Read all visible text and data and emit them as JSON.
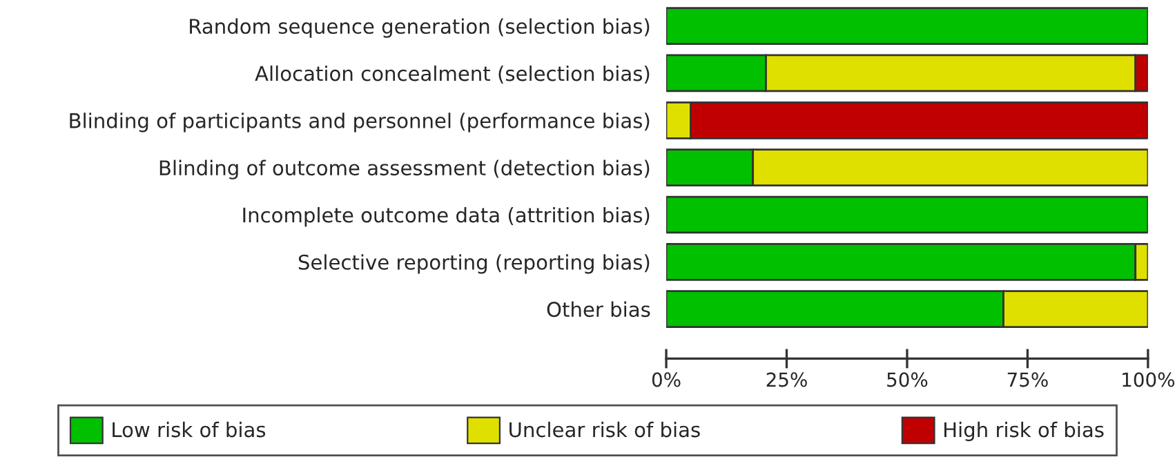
{
  "chart_data": {
    "type": "bar",
    "orientation": "horizontal",
    "stacked": true,
    "categories": [
      "Random sequence generation (selection bias)",
      "Allocation concealment (selection bias)",
      "Blinding of participants and personnel (performance bias)",
      "Blinding of outcome assessment (detection bias)",
      "Incomplete outcome data (attrition bias)",
      "Selective reporting (reporting bias)",
      "Other bias"
    ],
    "series": [
      {
        "name": "Low risk of bias",
        "color": "#00c000",
        "values": [
          100,
          20.7,
          0,
          18,
          100,
          97.4,
          70
        ]
      },
      {
        "name": "Unclear risk of bias",
        "color": "#e0e000",
        "values": [
          0,
          76.7,
          5.1,
          82,
          0,
          2.6,
          30
        ]
      },
      {
        "name": "High risk of bias",
        "color": "#c00000",
        "values": [
          0,
          2.6,
          94.9,
          0,
          0,
          0,
          0
        ]
      }
    ],
    "xlim": [
      0,
      100
    ],
    "xticks": [
      {
        "value": 0,
        "label": "0%"
      },
      {
        "value": 25,
        "label": "25%"
      },
      {
        "value": 50,
        "label": "50%"
      },
      {
        "value": 75,
        "label": "75%"
      },
      {
        "value": 100,
        "label": "100%"
      }
    ],
    "grid": false,
    "legend": "bottom"
  }
}
